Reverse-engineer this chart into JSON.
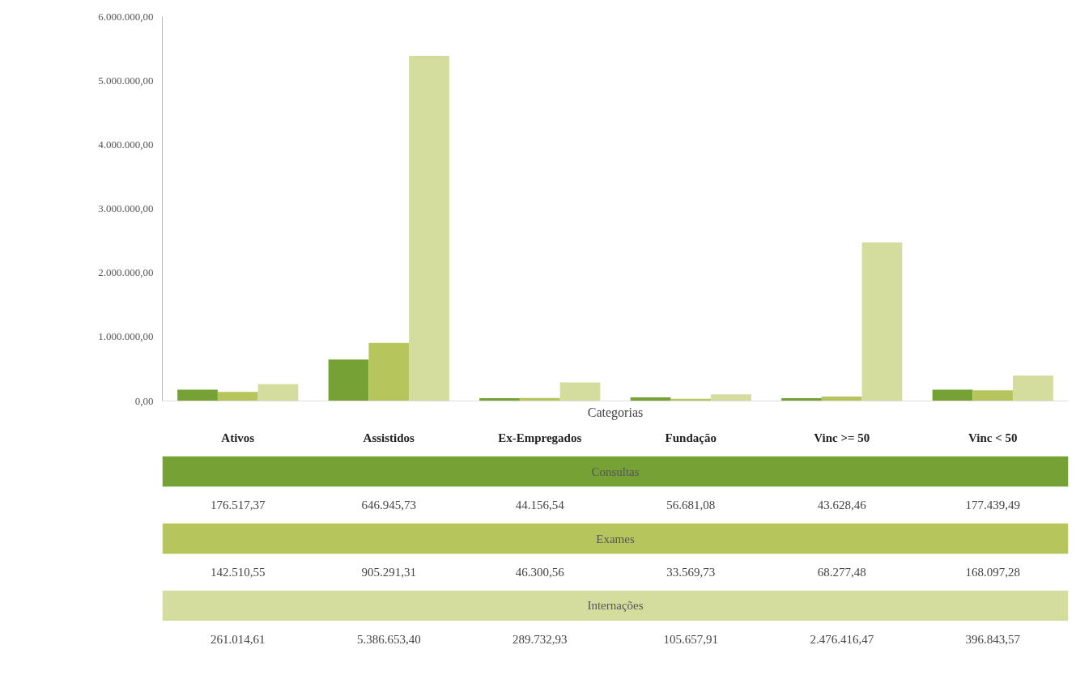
{
  "chart_data": {
    "type": "bar",
    "xlabel": "Categorias",
    "categories": [
      "Ativos",
      "Assistidos",
      "Ex-Empregados",
      "Fundação",
      "Vinc >= 50",
      "Vinc < 50"
    ],
    "series": [
      {
        "name": "Consultas",
        "color": "#76a135",
        "values": [
          176517.37,
          646945.73,
          44156.54,
          56681.08,
          43628.46,
          177439.49
        ],
        "value_labels": [
          "176.517,37",
          "646.945,73",
          "44.156,54",
          "56.681,08",
          "43.628,46",
          "177.439,49"
        ]
      },
      {
        "name": "Exames",
        "color": "#b7c65c",
        "values": [
          142510.55,
          905291.31,
          46300.56,
          33569.73,
          68277.48,
          168097.28
        ],
        "value_labels": [
          "142.510,55",
          "905.291,31",
          "46.300,56",
          "33.569,73",
          "68.277,48",
          "168.097,28"
        ]
      },
      {
        "name": "Internações",
        "color": "#d4dd9e",
        "values": [
          261014.61,
          5386653.4,
          289732.93,
          105657.91,
          2476416.47,
          396843.57
        ],
        "value_labels": [
          "261.014,61",
          "5.386.653,40",
          "289.732,93",
          "105.657,91",
          "2.476.416,47",
          "396.843,57"
        ]
      }
    ],
    "ylim": [
      0,
      6000000
    ],
    "yticks": [
      {
        "value": 0,
        "label": "0,00"
      },
      {
        "value": 1000000,
        "label": "1.000.000,00"
      },
      {
        "value": 2000000,
        "label": "2.000.000,00"
      },
      {
        "value": 3000000,
        "label": "3.000.000,00"
      },
      {
        "value": 4000000,
        "label": "4.000.000,00"
      },
      {
        "value": 5000000,
        "label": "5.000.000,00"
      },
      {
        "value": 6000000,
        "label": "6.000.000,00"
      }
    ],
    "grid": false
  }
}
